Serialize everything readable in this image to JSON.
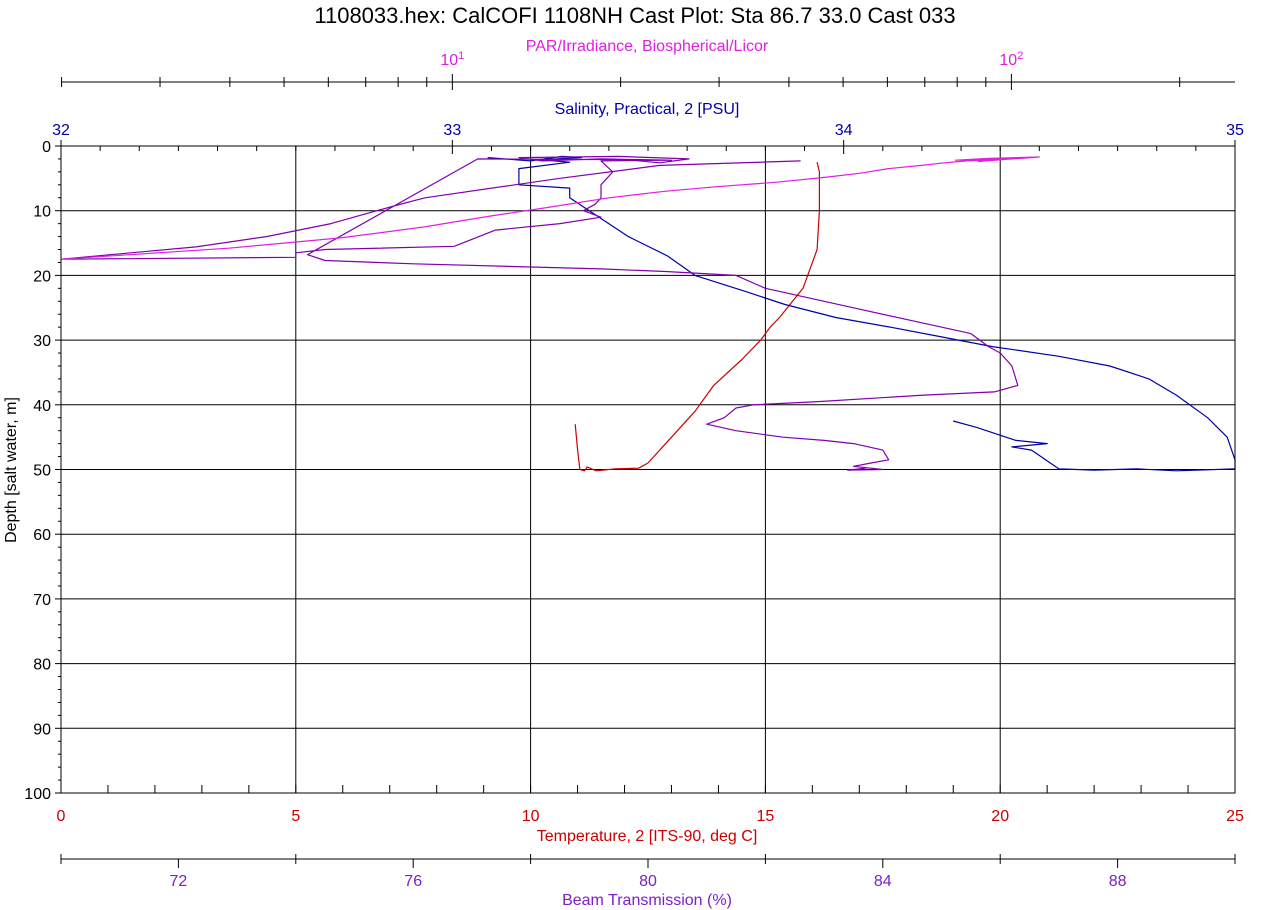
{
  "chart_data": {
    "type": "line",
    "title": "1108033.hex: CalCOFI 1108NH Cast Plot: Sta 86.7 33.0  Cast 033",
    "ylabel": "Depth [salt water, m]",
    "ylim": [
      0,
      100
    ],
    "y_reversed": true,
    "y_ticks": [
      "0",
      "10",
      "20",
      "30",
      "40",
      "50",
      "60",
      "70",
      "80",
      "90",
      "100"
    ],
    "grid": true,
    "axes": {
      "temperature": {
        "label": "Temperature, 2 [ITS-90, deg C]",
        "range": [
          0,
          25
        ],
        "ticks": [
          "0",
          "5",
          "10",
          "15",
          "20",
          "25"
        ],
        "color": "#cc0000",
        "position": "bottom"
      },
      "beam": {
        "label": "Beam Transmission (%)",
        "range": [
          70,
          90
        ],
        "ticks": [
          "72",
          "76",
          "80",
          "84",
          "88"
        ],
        "color": "#7a1fc9",
        "position": "bottom-outer"
      },
      "salinity": {
        "label": "Salinity, Practical, 2 [PSU]",
        "range": [
          32,
          35
        ],
        "ticks": [
          "32",
          "33",
          "34",
          "35"
        ],
        "color": "#0000aa",
        "position": "top"
      },
      "par": {
        "label": "PAR/Irradiance, Biospherical/Licor",
        "range_log10": [
          0.3,
          2.4
        ],
        "ticks": [
          {
            "base": "10",
            "exp": "1",
            "value": 10
          },
          {
            "base": "10",
            "exp": "2",
            "value": 100
          }
        ],
        "color": "#e020e0",
        "scale": "log",
        "position": "top-outer"
      }
    },
    "series": [
      {
        "axis": "temperature",
        "color": "#cc0000",
        "points": [
          [
            16.1,
            2.5
          ],
          [
            16.15,
            4
          ],
          [
            16.15,
            10
          ],
          [
            16.1,
            16
          ],
          [
            15.8,
            22
          ],
          [
            15.3,
            26.5
          ],
          [
            15.1,
            28
          ],
          [
            14.9,
            30
          ],
          [
            14.5,
            33
          ],
          [
            13.9,
            37
          ],
          [
            13.5,
            41
          ],
          [
            13.0,
            45
          ],
          [
            12.5,
            49
          ],
          [
            12.3,
            49.8
          ],
          [
            11.8,
            49.9
          ],
          [
            11.4,
            50.2
          ],
          [
            11.2,
            49.6
          ],
          [
            11.15,
            50.2
          ],
          [
            11.05,
            50
          ],
          [
            11.0,
            47
          ],
          [
            10.95,
            43
          ]
        ]
      },
      {
        "axis": "salinity",
        "color": "#0000aa",
        "points": [
          [
            33.09,
            1.8
          ],
          [
            33.2,
            2.3
          ],
          [
            33.28,
            1.6
          ],
          [
            33.33,
            1.8
          ],
          [
            33.2,
            2.2
          ],
          [
            33.22,
            2.1
          ],
          [
            33.3,
            2.5
          ],
          [
            33.17,
            3.5
          ],
          [
            33.17,
            6
          ],
          [
            33.3,
            6.5
          ],
          [
            33.3,
            8
          ],
          [
            33.35,
            10
          ],
          [
            33.45,
            14
          ],
          [
            33.55,
            17
          ],
          [
            33.62,
            20
          ],
          [
            33.75,
            22.5
          ],
          [
            33.85,
            24.5
          ],
          [
            33.98,
            26.5
          ],
          [
            34.12,
            28
          ],
          [
            34.25,
            29.5
          ],
          [
            34.38,
            31
          ],
          [
            34.55,
            32.5
          ],
          [
            34.68,
            34
          ],
          [
            34.78,
            36
          ],
          [
            34.85,
            38.5
          ],
          [
            34.93,
            42
          ],
          [
            34.98,
            45
          ],
          [
            35.0,
            48.5
          ],
          [
            35.0,
            49.9
          ],
          [
            34.85,
            50.2
          ],
          [
            34.75,
            49.9
          ],
          [
            34.64,
            50.1
          ],
          [
            34.55,
            49.9
          ],
          [
            34.48,
            47
          ],
          [
            34.43,
            46.5
          ],
          [
            34.52,
            46
          ],
          [
            34.44,
            45.5
          ],
          [
            34.34,
            43.5
          ],
          [
            34.28,
            42.5
          ]
        ]
      },
      {
        "axis": "beam",
        "color": "#8000b0",
        "points": [
          [
            82.6,
            2.3
          ],
          [
            80.2,
            3
          ],
          [
            78.5,
            5
          ],
          [
            76.2,
            8
          ],
          [
            75.7,
            9.2
          ],
          [
            74.6,
            12
          ],
          [
            73.5,
            14
          ],
          [
            72.3,
            15.6
          ],
          [
            70.0,
            17.5
          ],
          [
            74.0,
            17.2
          ],
          [
            74.0,
            16.5
          ],
          [
            74.5,
            16
          ],
          [
            76.7,
            15.5
          ],
          [
            77.4,
            13
          ],
          [
            78.5,
            12
          ],
          [
            79.2,
            11
          ],
          [
            78.9,
            10
          ],
          [
            79.1,
            9
          ],
          [
            79.2,
            8
          ],
          [
            79.2,
            6
          ],
          [
            79.4,
            4
          ],
          [
            79.2,
            2.3
          ],
          [
            80.4,
            2.2
          ],
          [
            79.2,
            2.0
          ],
          [
            78.2,
            2.3
          ],
          [
            77.8,
            1.8
          ],
          [
            79.5,
            1.6
          ],
          [
            80.7,
            2.0
          ],
          [
            80.2,
            2.6
          ],
          [
            79.6,
            2.1
          ],
          [
            77.1,
            2.0
          ],
          [
            74.2,
            16.8
          ],
          [
            74.5,
            17.7
          ],
          [
            76.0,
            18.2
          ],
          [
            79.2,
            19
          ],
          [
            80.3,
            19.4
          ],
          [
            81.5,
            20
          ],
          [
            82.0,
            22
          ],
          [
            82.5,
            23
          ],
          [
            83.5,
            25
          ],
          [
            84.5,
            27
          ],
          [
            85.5,
            29
          ],
          [
            85.8,
            31
          ],
          [
            86.0,
            32
          ],
          [
            86.2,
            34
          ],
          [
            86.3,
            37
          ],
          [
            85.9,
            38
          ],
          [
            84.7,
            38.5
          ],
          [
            82.9,
            39.5
          ],
          [
            81.8,
            40
          ],
          [
            81.5,
            40.5
          ],
          [
            81.3,
            42
          ],
          [
            81.0,
            43
          ],
          [
            81.5,
            44
          ],
          [
            82.3,
            45
          ],
          [
            83.0,
            45.5
          ],
          [
            83.5,
            46
          ],
          [
            84.0,
            47
          ],
          [
            84.1,
            48.5
          ],
          [
            83.8,
            49
          ],
          [
            83.5,
            49.5
          ],
          [
            84.0,
            50
          ],
          [
            83.4,
            50.1
          ],
          [
            83.7,
            49.8
          ]
        ]
      },
      {
        "axis": "par",
        "color": "#e020e0",
        "points": [
          [
            0.3,
            17.5
          ],
          [
            0.6,
            15.8
          ],
          [
            0.8,
            14.2
          ],
          [
            0.95,
            12.5
          ],
          [
            1.07,
            10.8
          ],
          [
            1.17,
            9.5
          ],
          [
            1.28,
            8.0
          ],
          [
            1.38,
            7.0
          ],
          [
            1.47,
            6.3
          ],
          [
            1.58,
            5.6
          ],
          [
            1.67,
            4.8
          ],
          [
            1.73,
            4.2
          ],
          [
            1.78,
            3.5
          ],
          [
            1.84,
            3.0
          ],
          [
            1.88,
            2.6
          ],
          [
            1.92,
            2.3
          ],
          [
            1.98,
            2.1
          ],
          [
            2.02,
            1.9
          ],
          [
            2.05,
            1.7
          ],
          [
            1.96,
            1.9
          ],
          [
            1.9,
            2.2
          ],
          [
            2.0,
            2.0
          ],
          [
            1.94,
            2.4
          ]
        ]
      }
    ]
  }
}
